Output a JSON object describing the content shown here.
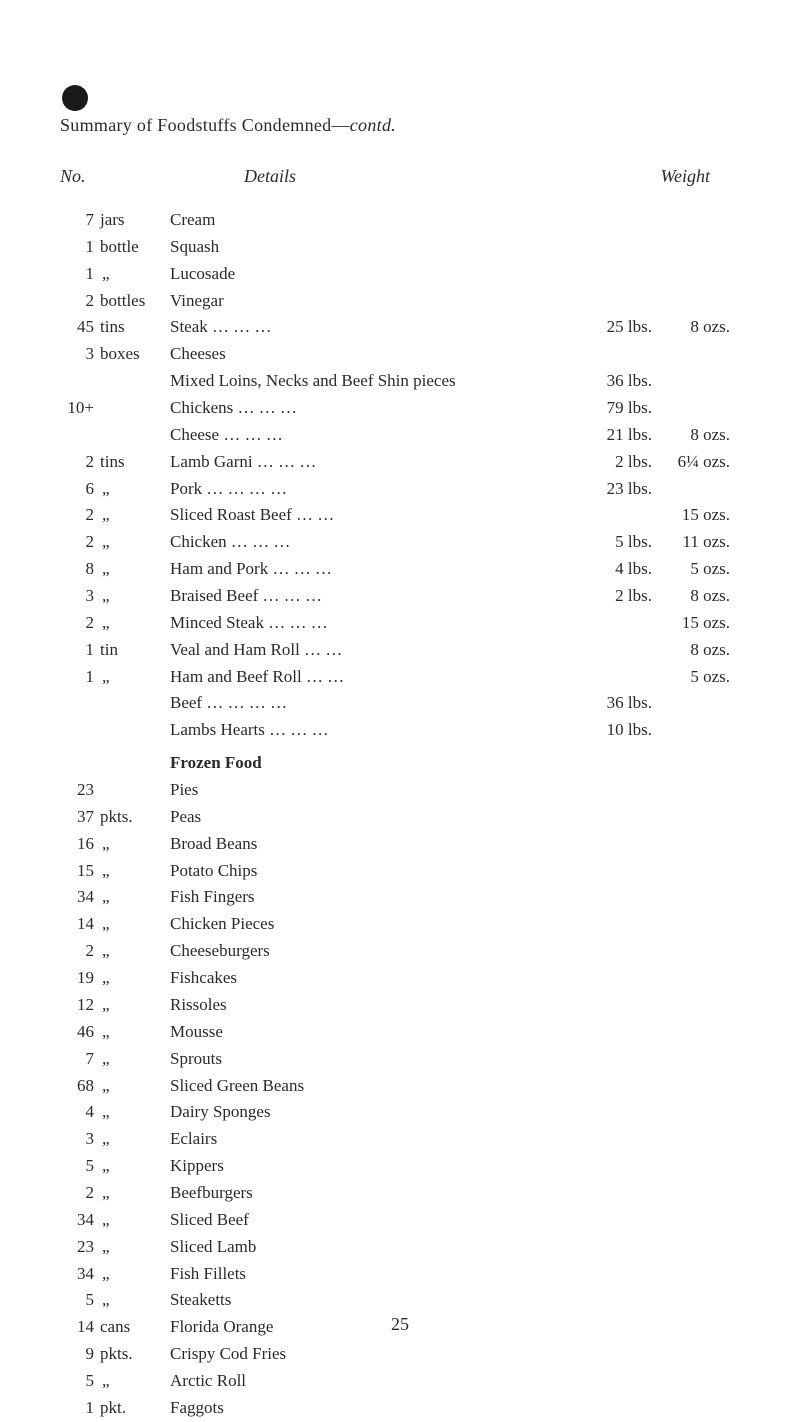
{
  "title_prefix": "Summary of Foodstuffs Condemned—",
  "title_italic": "contd.",
  "headers": {
    "no": "No.",
    "details": "Details",
    "weight": "Weight"
  },
  "section1": [
    {
      "qty": "7",
      "unit": "jars",
      "details": "Cream",
      "lbs": "",
      "ozs": ""
    },
    {
      "qty": "1",
      "unit": "bottle",
      "details": "Squash",
      "lbs": "",
      "ozs": ""
    },
    {
      "qty": "1",
      "unit": "„",
      "details": "Lucosade",
      "lbs": "",
      "ozs": ""
    },
    {
      "qty": "2",
      "unit": "bottles",
      "details": "Vinegar",
      "lbs": "",
      "ozs": ""
    },
    {
      "qty": "45",
      "unit": "tins",
      "details": "Steak       …        …        …",
      "lbs": "25 lbs.",
      "ozs": "8 ozs."
    },
    {
      "qty": "3",
      "unit": "boxes",
      "details": "Cheeses",
      "lbs": "",
      "ozs": ""
    },
    {
      "qty": "",
      "unit": "",
      "details": "Mixed Loins, Necks and Beef Shin pieces",
      "lbs": "36 lbs.",
      "ozs": ""
    },
    {
      "qty": "10+",
      "unit": "",
      "details": "Chickens      …        …        …",
      "lbs": "79 lbs.",
      "ozs": ""
    },
    {
      "qty": "",
      "unit": "",
      "details": "Cheese       …        …        …",
      "lbs": "21 lbs.",
      "ozs": "8 ozs."
    },
    {
      "qty": "2",
      "unit": "tins",
      "details": "Lamb Garni     …        …        …",
      "lbs": "2 lbs.",
      "ozs": "6¼ ozs."
    },
    {
      "qty": "6",
      "unit": "„",
      "details": "Pork  …       …        …        …",
      "lbs": "23 lbs.",
      "ozs": ""
    },
    {
      "qty": "2",
      "unit": "„",
      "details": "Sliced  Roast  Beef       …        …",
      "lbs": "",
      "ozs": "15 ozs."
    },
    {
      "qty": "2",
      "unit": "„",
      "details": "Chicken      …        …        …",
      "lbs": "5 lbs.",
      "ozs": "11 ozs."
    },
    {
      "qty": "8",
      "unit": "„",
      "details": "Ham  and  Pork  …       …        …",
      "lbs": "4 lbs.",
      "ozs": "5 ozs."
    },
    {
      "qty": "3",
      "unit": "„",
      "details": "Braised  Beef    …       …        …",
      "lbs": "2 lbs.",
      "ozs": "8 ozs."
    },
    {
      "qty": "2",
      "unit": "„",
      "details": "Minced  Steak    …       …        …",
      "lbs": "",
      "ozs": "15 ozs."
    },
    {
      "qty": "1",
      "unit": "tin",
      "details": "Veal  and  Ham  Roll      …        …",
      "lbs": "",
      "ozs": "8 ozs."
    },
    {
      "qty": "1",
      "unit": "„",
      "details": "Ham  and  Beef  Roll      …        …",
      "lbs": "",
      "ozs": "5 ozs."
    },
    {
      "qty": "",
      "unit": "",
      "details": "Beef  …       …        …        …",
      "lbs": "36 lbs.",
      "ozs": ""
    },
    {
      "qty": "",
      "unit": "",
      "details": "Lambs  Hearts    …       …        …",
      "lbs": "10 lbs.",
      "ozs": ""
    }
  ],
  "section2_title": "Frozen Food",
  "section2": [
    {
      "qty": "23",
      "unit": "",
      "details": "Pies"
    },
    {
      "qty": "37",
      "unit": "pkts.",
      "details": "Peas"
    },
    {
      "qty": "16",
      "unit": "„",
      "details": "Broad Beans"
    },
    {
      "qty": "15",
      "unit": "„",
      "details": "Potato Chips"
    },
    {
      "qty": "34",
      "unit": "„",
      "details": "Fish Fingers"
    },
    {
      "qty": "14",
      "unit": "„",
      "details": "Chicken Pieces"
    },
    {
      "qty": "2",
      "unit": "„",
      "details": "Cheeseburgers"
    },
    {
      "qty": "19",
      "unit": "„",
      "details": "Fishcakes"
    },
    {
      "qty": "12",
      "unit": "„",
      "details": "Rissoles"
    },
    {
      "qty": "46",
      "unit": "„",
      "details": "Mousse"
    },
    {
      "qty": "7",
      "unit": "„",
      "details": "Sprouts"
    },
    {
      "qty": "68",
      "unit": "„",
      "details": "Sliced Green Beans"
    },
    {
      "qty": "4",
      "unit": "„",
      "details": "Dairy Sponges"
    },
    {
      "qty": "3",
      "unit": "„",
      "details": "Eclairs"
    },
    {
      "qty": "5",
      "unit": "„",
      "details": "Kippers"
    },
    {
      "qty": "2",
      "unit": "„",
      "details": "Beefburgers"
    },
    {
      "qty": "34",
      "unit": "„",
      "details": "Sliced Beef"
    },
    {
      "qty": "23",
      "unit": "„",
      "details": "Sliced Lamb"
    },
    {
      "qty": "34",
      "unit": "„",
      "details": "Fish Fillets"
    },
    {
      "qty": "5",
      "unit": "„",
      "details": "Steaketts"
    },
    {
      "qty": "14",
      "unit": "cans",
      "details": "Florida Orange"
    },
    {
      "qty": "9",
      "unit": "pkts.",
      "details": "Crispy Cod Fries"
    },
    {
      "qty": "5",
      "unit": "„",
      "details": "Arctic Roll"
    },
    {
      "qty": "1",
      "unit": "pkt.",
      "details": "Faggots"
    }
  ],
  "page_number": "25"
}
